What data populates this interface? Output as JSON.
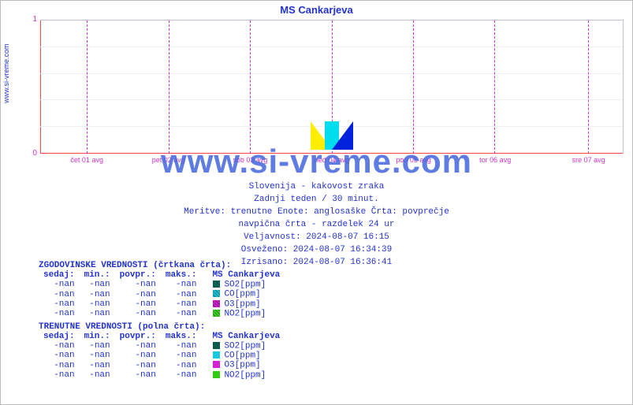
{
  "site_label": "www.si-vreme.com",
  "title": "MS Cankarjeva",
  "watermark": "www.si-vreme.com",
  "chart": {
    "type": "line",
    "background_color": "#ffffff",
    "grid_color": "#eeeef5",
    "baseline_color": "#ff4444",
    "vline_color": "#cc33cc",
    "ylim": [
      0,
      1
    ],
    "yticks": [
      0,
      1
    ],
    "xticks": [
      {
        "pos_pct": 8,
        "label": "čet 01 avg"
      },
      {
        "pos_pct": 22,
        "label": "pet 02 avg"
      },
      {
        "pos_pct": 36,
        "label": "sob 03 avg"
      },
      {
        "pos_pct": 50,
        "label": "ned 04 avg"
      },
      {
        "pos_pct": 64,
        "label": "pon 05 avg"
      },
      {
        "pos_pct": 78,
        "label": "tor 06 avg"
      },
      {
        "pos_pct": 94,
        "label": "sre 07 avg"
      }
    ],
    "hgrid_pcts": [
      20,
      40,
      60,
      80
    ]
  },
  "meta": {
    "line1": "Slovenija - kakovost zraka",
    "line2": "Zadnji teden / 30 minut.",
    "line3": "Meritve: trenutne  Enote: anglosaške  Črta: povprečje",
    "line4": "navpična črta - razdelek 24 ur",
    "line5": "Veljavnost: 2024-08-07 16:15",
    "line6": "Osveženo: 2024-08-07 16:34:39",
    "line7": "Izrisano: 2024-08-07 16:36:41"
  },
  "history": {
    "title": "ZGODOVINSKE VREDNOSTI (črtkana črta):",
    "headers": [
      "sedaj:",
      "min.:",
      "povpr.:",
      "maks.:"
    ],
    "station": "MS Cankarjeva",
    "rows": [
      {
        "vals": [
          "-nan",
          "-nan",
          "-nan",
          "-nan"
        ],
        "label": "SO2[ppm]",
        "color": "#0a6b5b"
      },
      {
        "vals": [
          "-nan",
          "-nan",
          "-nan",
          "-nan"
        ],
        "label": "CO[ppm]",
        "color": "#1bbecf"
      },
      {
        "vals": [
          "-nan",
          "-nan",
          "-nan",
          "-nan"
        ],
        "label": "O3[ppm]",
        "color": "#c81fc8"
      },
      {
        "vals": [
          "-nan",
          "-nan",
          "-nan",
          "-nan"
        ],
        "label": "NO2[ppm]",
        "color": "#3acc1f"
      }
    ]
  },
  "current": {
    "title": "TRENUTNE VREDNOSTI (polna črta):",
    "headers": [
      "sedaj:",
      "min.:",
      "povpr.:",
      "maks.:"
    ],
    "station": "MS Cankarjeva",
    "rows": [
      {
        "vals": [
          "-nan",
          "-nan",
          "-nan",
          "-nan"
        ],
        "label": "SO2[ppm]",
        "color": "#0a5b4b"
      },
      {
        "vals": [
          "-nan",
          "-nan",
          "-nan",
          "-nan"
        ],
        "label": "CO[ppm]",
        "color": "#18c8dd"
      },
      {
        "vals": [
          "-nan",
          "-nan",
          "-nan",
          "-nan"
        ],
        "label": "O3[ppm]",
        "color": "#d622d6"
      },
      {
        "vals": [
          "-nan",
          "-nan",
          "-nan",
          "-nan"
        ],
        "label": "NO2[ppm]",
        "color": "#2fcc10"
      }
    ]
  }
}
